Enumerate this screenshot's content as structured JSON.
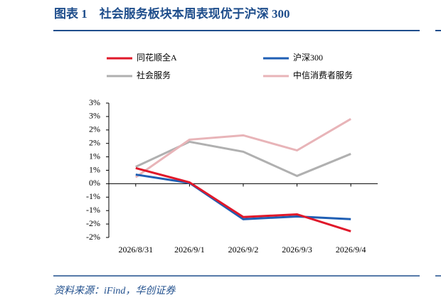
{
  "title": "图表 1　社会服务板块本周表现优于沪深 300",
  "source": "资料来源：iFind，华创证券",
  "chart_data": {
    "type": "line",
    "categories": [
      "2026/8/31",
      "2026/9/1",
      "2026/9/2",
      "2026/9/3",
      "2026/9/4"
    ],
    "series": [
      {
        "name": "同花顺全A",
        "color": "#e0182a",
        "values": [
          0.58,
          0.05,
          -1.24,
          -1.14,
          -1.77
        ]
      },
      {
        "name": "沪深300",
        "color": "#1f5fb4",
        "values": [
          0.34,
          0.03,
          -1.32,
          -1.22,
          -1.32
        ]
      },
      {
        "name": "社会服务",
        "color": "#b0b0b0",
        "values": [
          0.63,
          1.56,
          1.19,
          0.29,
          1.11
        ]
      },
      {
        "name": "中信消费者服务",
        "color": "#e8b4b8",
        "values": [
          0.24,
          1.64,
          1.8,
          1.24,
          2.41
        ]
      }
    ],
    "ylim": [
      -2,
      3
    ],
    "yticks": [
      {
        "value": 3,
        "label": "3%"
      },
      {
        "value": 2.5,
        "label": "3%"
      },
      {
        "value": 2,
        "label": "2%"
      },
      {
        "value": 1.5,
        "label": "2%"
      },
      {
        "value": 1,
        "label": "1%"
      },
      {
        "value": 0.5,
        "label": "1%"
      },
      {
        "value": 0,
        "label": "0%"
      },
      {
        "value": -0.5,
        "label": "-1%"
      },
      {
        "value": -1,
        "label": "-1%"
      },
      {
        "value": -1.5,
        "label": "-2%"
      },
      {
        "value": -2,
        "label": "-2%"
      }
    ]
  }
}
